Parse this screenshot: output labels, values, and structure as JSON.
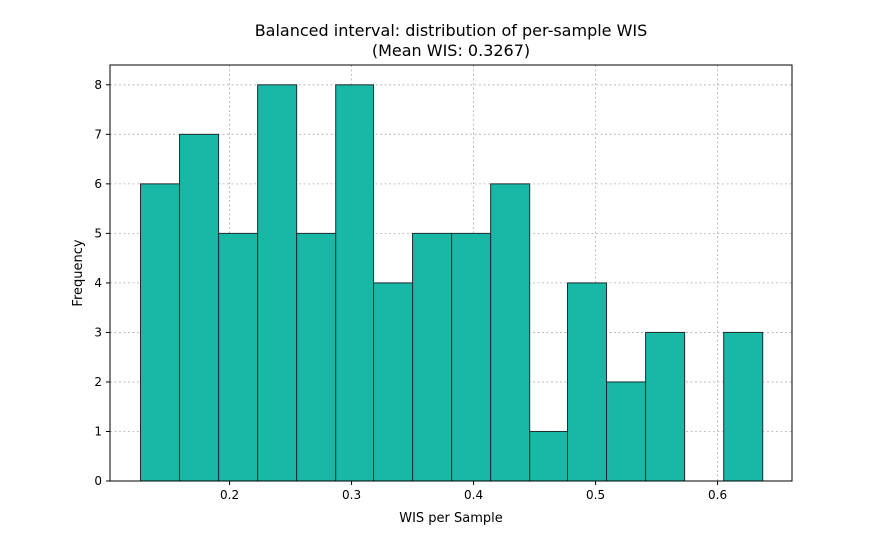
{
  "chart_data": {
    "type": "bar",
    "title": "Balanced interval: distribution of per-sample WIS",
    "subtitle": "(Mean WIS: 0.3267)",
    "xlabel": "WIS per Sample",
    "ylabel": "Frequency",
    "grid": true,
    "xlim": [
      0.102,
      0.661
    ],
    "ylim": [
      0,
      8.4
    ],
    "x_ticks": [
      0.2,
      0.3,
      0.4,
      0.5,
      0.6
    ],
    "x_tick_labels": [
      "0.2",
      "0.3",
      "0.4",
      "0.5",
      "0.6"
    ],
    "y_ticks": [
      0,
      1,
      2,
      3,
      4,
      5,
      6,
      7,
      8
    ],
    "y_tick_labels": [
      "0",
      "1",
      "2",
      "3",
      "4",
      "5",
      "6",
      "7",
      "8"
    ],
    "bar_color": "#17b8a6",
    "edge_color": "#1f2a30",
    "bins": [
      {
        "x0": 0.127,
        "x1": 0.159,
        "count": 6
      },
      {
        "x0": 0.159,
        "x1": 0.191,
        "count": 7
      },
      {
        "x0": 0.191,
        "x1": 0.223,
        "count": 5
      },
      {
        "x0": 0.223,
        "x1": 0.255,
        "count": 8
      },
      {
        "x0": 0.255,
        "x1": 0.287,
        "count": 5
      },
      {
        "x0": 0.287,
        "x1": 0.318,
        "count": 8
      },
      {
        "x0": 0.318,
        "x1": 0.35,
        "count": 4
      },
      {
        "x0": 0.35,
        "x1": 0.382,
        "count": 5
      },
      {
        "x0": 0.382,
        "x1": 0.414,
        "count": 5
      },
      {
        "x0": 0.414,
        "x1": 0.446,
        "count": 6
      },
      {
        "x0": 0.446,
        "x1": 0.477,
        "count": 1
      },
      {
        "x0": 0.477,
        "x1": 0.509,
        "count": 4
      },
      {
        "x0": 0.509,
        "x1": 0.541,
        "count": 2
      },
      {
        "x0": 0.541,
        "x1": 0.573,
        "count": 3
      },
      {
        "x0": 0.573,
        "x1": 0.605,
        "count": 0
      },
      {
        "x0": 0.605,
        "x1": 0.637,
        "count": 3
      }
    ]
  }
}
